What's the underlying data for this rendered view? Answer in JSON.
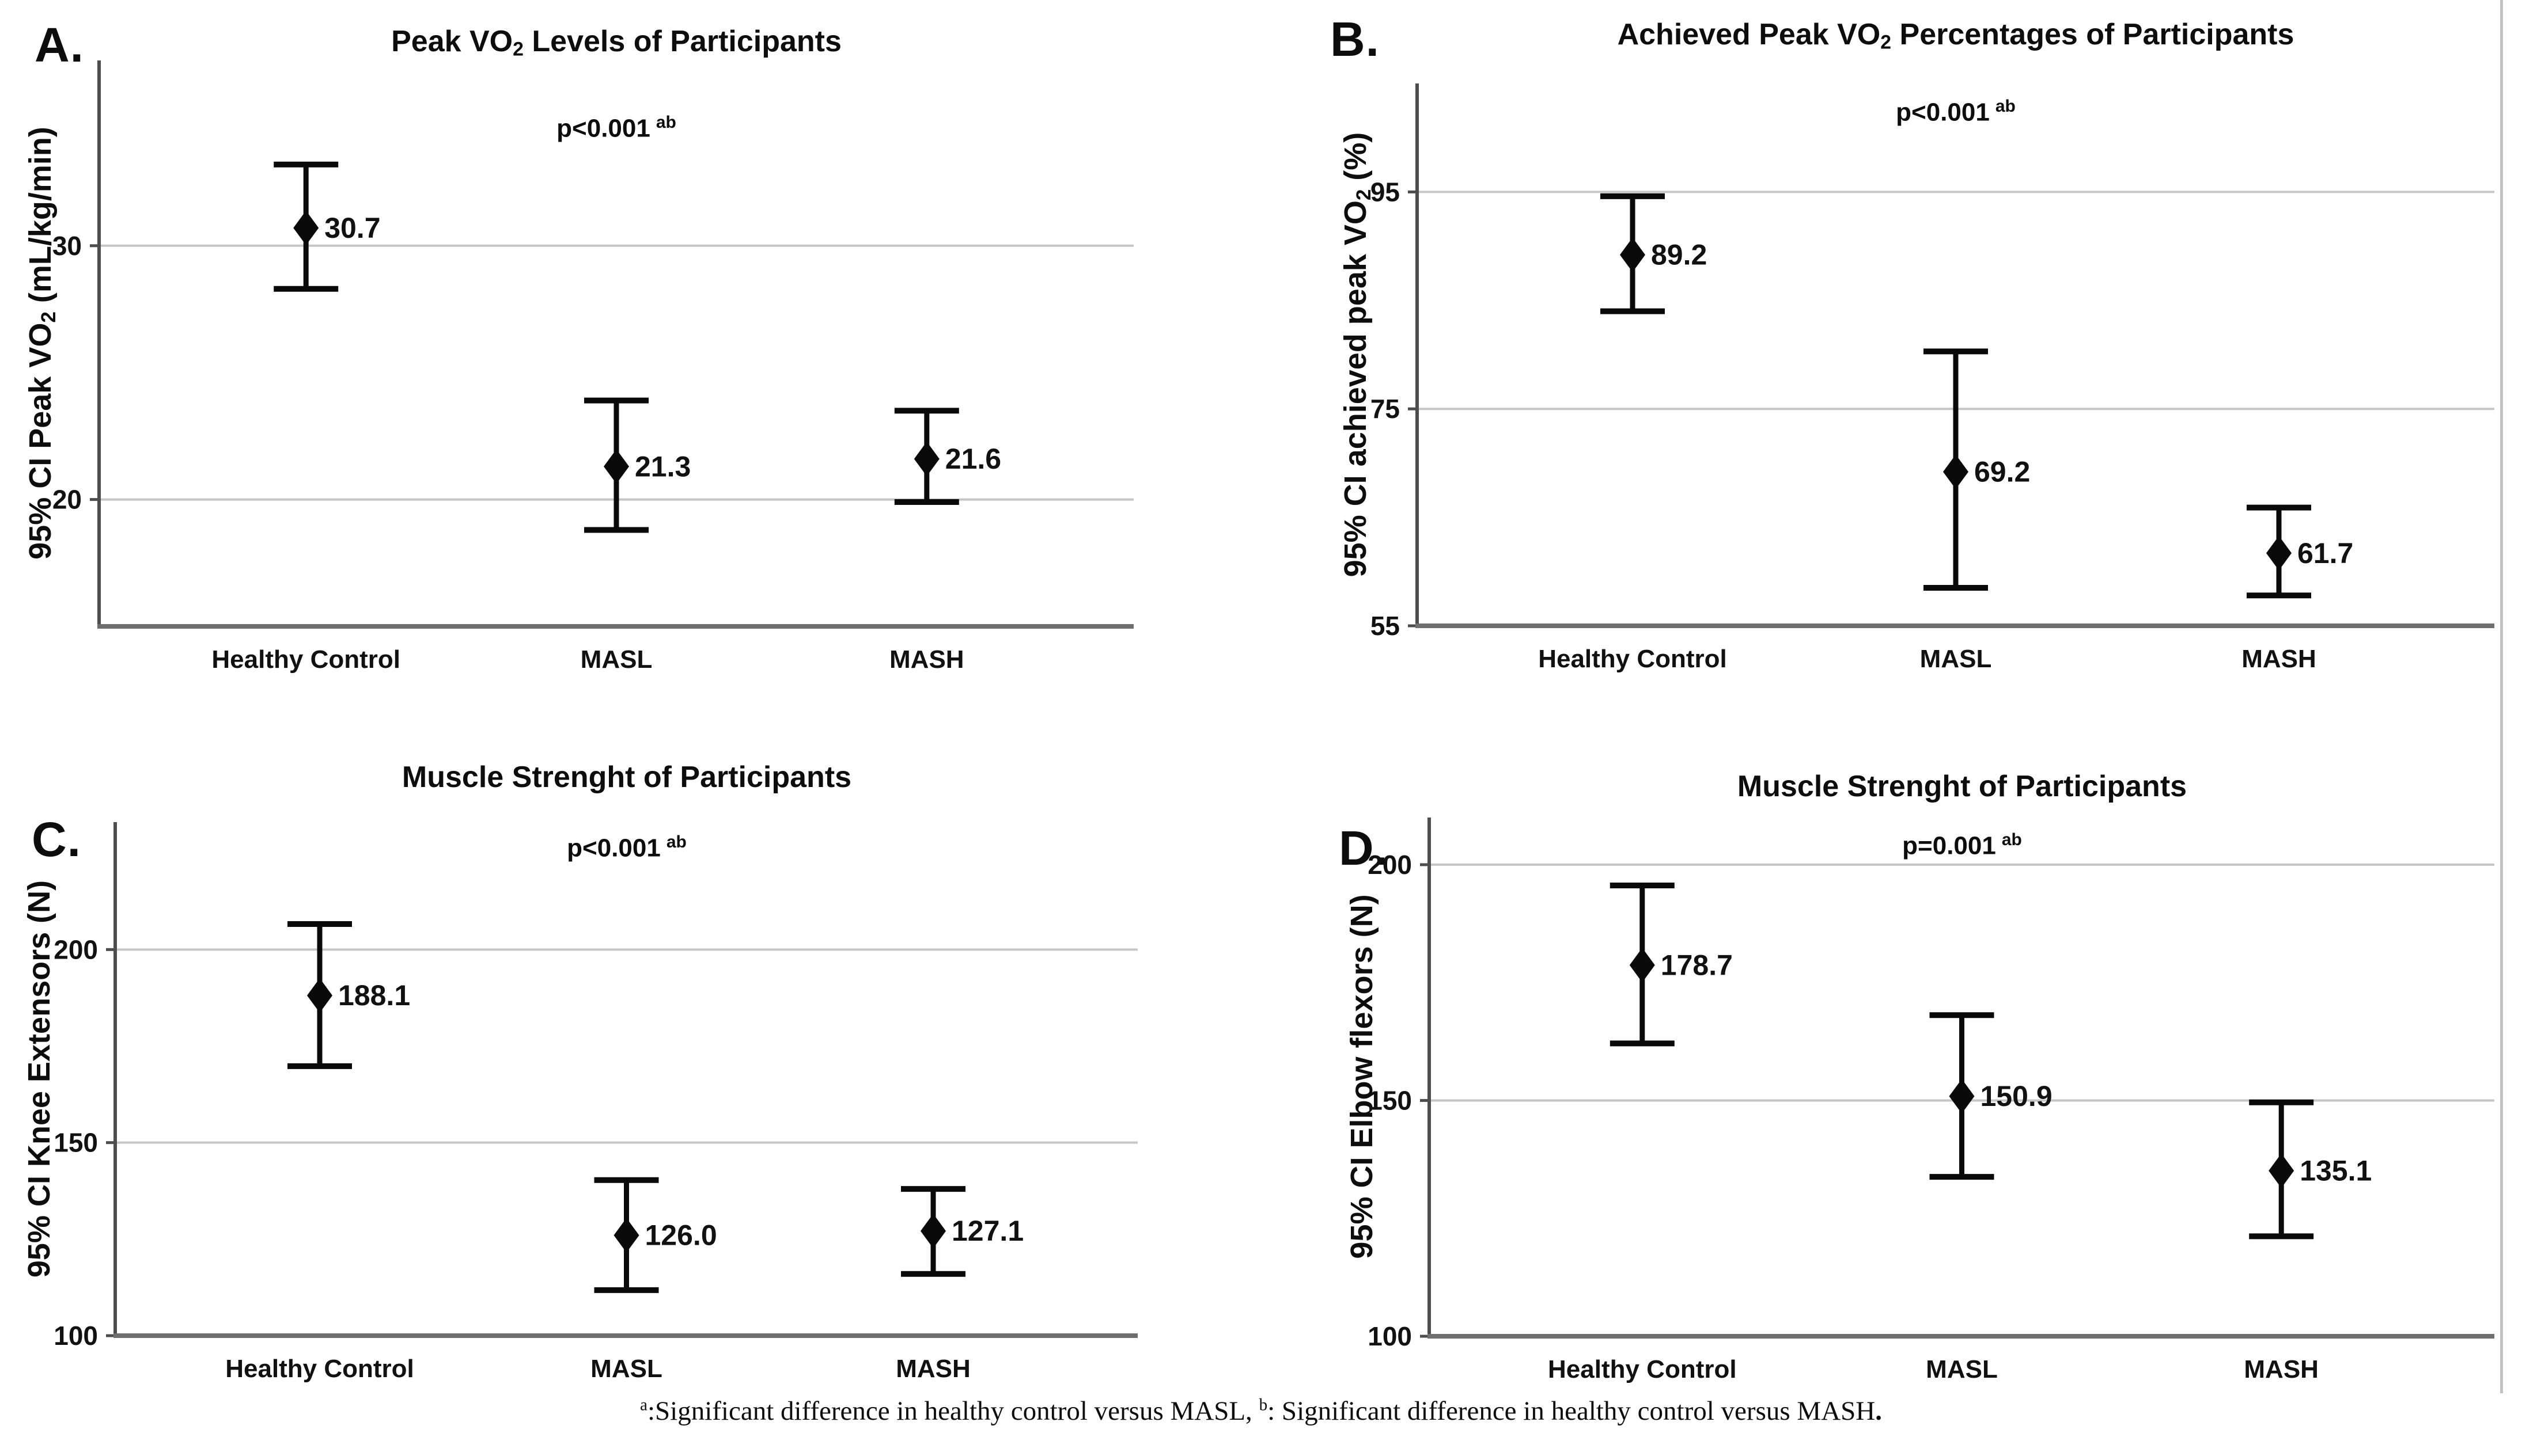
{
  "figure": {
    "background": "#ffffff",
    "colors": {
      "text": "#111111",
      "gridline": "#c6c6c6",
      "y_spine": "#4d4d4d",
      "x_axis": "#6e6e6e",
      "marker": "#0a0a0a",
      "right_border": "#c2c2c2"
    },
    "footnote": {
      "parts": [
        {
          "t": "a",
          "sup": true
        },
        {
          "t": ":Significant difference in healthy control versus MASL, "
        },
        {
          "t": "b",
          "sup": true
        },
        {
          "t": ": Significant difference in healthy control versus MASH"
        },
        {
          "t": ".",
          "bold": true
        }
      ]
    }
  },
  "chart_data": [
    {
      "panel_letter": "A.",
      "type": "errorbar",
      "title_parts": [
        {
          "t": "Peak VO"
        },
        {
          "t": "2",
          "sub": true
        },
        {
          "t": " Levels of Participants"
        }
      ],
      "p_value": {
        "base": "p<0.001",
        "sup": "ab"
      },
      "ylabel_parts": [
        {
          "t": "95% CI Peak VO"
        },
        {
          "t": "2",
          "sub": true
        },
        {
          "t": " (mL/kg/min)"
        }
      ],
      "categories": [
        "Healthy Control",
        "MASL",
        "MASH"
      ],
      "means": [
        30.7,
        21.3,
        21.6
      ],
      "value_labels": [
        "30.7",
        "21.3",
        "21.6"
      ],
      "ci_low": [
        28.3,
        18.8,
        19.9
      ],
      "ci_high": [
        33.2,
        23.9,
        23.5
      ],
      "yticks": [
        20,
        30
      ],
      "ylim": [
        15,
        37.3
      ],
      "grid": true,
      "legend": null
    },
    {
      "panel_letter": "B.",
      "type": "errorbar",
      "title_parts": [
        {
          "t": "Achieved Peak VO"
        },
        {
          "t": "2",
          "sub": true
        },
        {
          "t": " Percentages of Participants"
        }
      ],
      "p_value": {
        "base": "p<0.001",
        "sup": "ab"
      },
      "ylabel_parts": [
        {
          "t": "95% CI achieved peak VO"
        },
        {
          "t": "2",
          "sub": true
        },
        {
          "t": " (%)"
        }
      ],
      "categories": [
        "Healthy Control",
        "MASL",
        "MASH"
      ],
      "means": [
        89.2,
        69.2,
        61.7
      ],
      "value_labels": [
        "89.2",
        "69.2",
        "61.7"
      ],
      "ci_low": [
        84.0,
        58.5,
        57.8
      ],
      "ci_high": [
        94.6,
        80.3,
        65.9
      ],
      "yticks": [
        55,
        75,
        95
      ],
      "ylim": [
        55,
        105
      ],
      "grid": true,
      "legend": null
    },
    {
      "panel_letter": "C.",
      "type": "errorbar",
      "title_parts": [
        {
          "t": "Muscle Strenght of Participants"
        }
      ],
      "p_value": {
        "base": "p<0.001",
        "sup": "ab"
      },
      "ylabel_parts": [
        {
          "t": "95% CI Knee Extensors (N)"
        }
      ],
      "categories": [
        "Healthy Control",
        "MASL",
        "MASH"
      ],
      "means": [
        188.1,
        126.0,
        127.1
      ],
      "value_labels": [
        "188.1",
        "126.0",
        "127.1"
      ],
      "ci_low": [
        169.8,
        111.8,
        116.0
      ],
      "ci_high": [
        206.6,
        140.3,
        138.0
      ],
      "yticks": [
        100,
        150,
        200
      ],
      "ylim": [
        100,
        233
      ],
      "grid": true,
      "legend": null
    },
    {
      "panel_letter": "D.",
      "type": "errorbar",
      "title_parts": [
        {
          "t": "Muscle Strenght of Participants"
        }
      ],
      "p_value": {
        "base": "p=0.001",
        "sup": "ab"
      },
      "ylabel_parts": [
        {
          "t": "95% CI Elbow flexors (N)"
        }
      ],
      "categories": [
        "Healthy Control",
        "MASL",
        "MASH"
      ],
      "means": [
        178.7,
        150.9,
        135.1
      ],
      "value_labels": [
        "178.7",
        "150.9",
        "135.1"
      ],
      "ci_low": [
        162.1,
        133.8,
        121.2
      ],
      "ci_high": [
        195.6,
        168.1,
        149.6
      ],
      "yticks": [
        100,
        150,
        200
      ],
      "ylim": [
        100,
        210
      ],
      "grid": true,
      "legend": null
    }
  ]
}
